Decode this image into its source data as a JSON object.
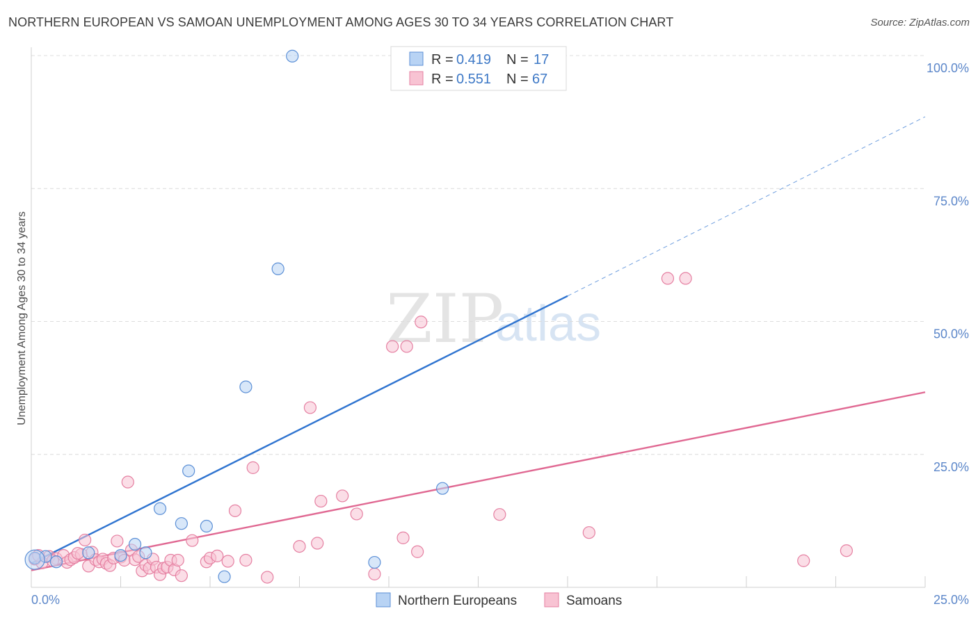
{
  "title": "NORTHERN EUROPEAN VS SAMOAN UNEMPLOYMENT AMONG AGES 30 TO 34 YEARS CORRELATION CHART",
  "source": "Source: ZipAtlas.com",
  "watermark": {
    "zip": "ZIP",
    "atlas": "atlas"
  },
  "colors": {
    "blue_fill": "#b8d3f4",
    "blue_stroke": "#5b8fd6",
    "blue_line": "#2f74d0",
    "pink_fill": "#f8c3d3",
    "pink_stroke": "#e57fa1",
    "pink_line": "#e06892",
    "grid": "#dcdcdc",
    "tick_text": "#5b86c9"
  },
  "legend": {
    "rows": [
      {
        "r_label": "R = ",
        "r_value": "0.419",
        "n_label": "N = ",
        "n_value": "17"
      },
      {
        "r_label": "R = ",
        "r_value": "0.551",
        "n_label": "N = ",
        "n_value": "67"
      }
    ]
  },
  "chart_data": {
    "type": "scatter",
    "title": "NORTHERN EUROPEAN VS SAMOAN UNEMPLOYMENT AMONG AGES 30 TO 34 YEARS CORRELATION CHART",
    "xlabel": "",
    "ylabel": "Unemployment Among Ages 30 to 34 years",
    "xlim": [
      0,
      25
    ],
    "ylim": [
      0,
      100
    ],
    "x_tick_labels": [
      "0.0%",
      "25.0%"
    ],
    "y_tick_labels": [
      "25.0%",
      "50.0%",
      "75.0%",
      "100.0%"
    ],
    "y_ticks": [
      25,
      50,
      75,
      100
    ],
    "grid": true,
    "legend_position": "top-center",
    "series": [
      {
        "name": "Northern Europeans",
        "points": [
          [
            0.1,
            5.5
          ],
          [
            0.4,
            5.8
          ],
          [
            0.7,
            4.8
          ],
          [
            1.6,
            6.5
          ],
          [
            2.5,
            6.0
          ],
          [
            2.9,
            8.1
          ],
          [
            3.2,
            6.5
          ],
          [
            3.6,
            14.8
          ],
          [
            4.2,
            12.0
          ],
          [
            4.4,
            21.9
          ],
          [
            4.9,
            11.5
          ],
          [
            5.4,
            2.0
          ],
          [
            6.0,
            37.7
          ],
          [
            6.9,
            59.9
          ],
          [
            7.3,
            99.9
          ],
          [
            9.6,
            4.7
          ],
          [
            11.5,
            18.6
          ]
        ],
        "trend": {
          "x0": 0,
          "y0": 4.5,
          "x1": 15,
          "y1": 54.8,
          "dash_to_x": 25,
          "dash_to_y": 88.5
        }
      },
      {
        "name": "Samoans",
        "points": [
          [
            0.1,
            5.3
          ],
          [
            0.3,
            4.6
          ],
          [
            0.5,
            5.8
          ],
          [
            0.7,
            5.4
          ],
          [
            0.9,
            6.0
          ],
          [
            1.0,
            4.7
          ],
          [
            1.1,
            5.2
          ],
          [
            1.2,
            5.6
          ],
          [
            1.4,
            6.2
          ],
          [
            1.5,
            8.9
          ],
          [
            1.6,
            4.0
          ],
          [
            1.7,
            6.6
          ],
          [
            1.8,
            5.2
          ],
          [
            1.9,
            4.8
          ],
          [
            2.0,
            5.3
          ],
          [
            2.1,
            4.5
          ],
          [
            2.2,
            4.1
          ],
          [
            2.3,
            5.5
          ],
          [
            2.4,
            8.7
          ],
          [
            2.5,
            5.7
          ],
          [
            2.6,
            5.1
          ],
          [
            2.7,
            19.8
          ],
          [
            2.8,
            7.0
          ],
          [
            2.9,
            5.2
          ],
          [
            3.0,
            5.8
          ],
          [
            3.1,
            3.1
          ],
          [
            3.2,
            4.2
          ],
          [
            3.3,
            3.6
          ],
          [
            3.4,
            5.3
          ],
          [
            3.5,
            3.8
          ],
          [
            3.6,
            2.4
          ],
          [
            3.7,
            3.6
          ],
          [
            3.8,
            3.8
          ],
          [
            3.9,
            5.1
          ],
          [
            4.0,
            3.3
          ],
          [
            4.1,
            5.1
          ],
          [
            4.2,
            2.2
          ],
          [
            4.5,
            8.8
          ],
          [
            4.9,
            4.8
          ],
          [
            5.0,
            5.5
          ],
          [
            5.2,
            5.9
          ],
          [
            5.5,
            4.9
          ],
          [
            5.7,
            14.4
          ],
          [
            6.0,
            5.1
          ],
          [
            6.2,
            22.5
          ],
          [
            6.6,
            1.9
          ],
          [
            7.5,
            7.7
          ],
          [
            7.8,
            33.8
          ],
          [
            8.0,
            8.3
          ],
          [
            8.1,
            16.2
          ],
          [
            8.7,
            17.2
          ],
          [
            9.1,
            13.8
          ],
          [
            9.6,
            2.5
          ],
          [
            10.1,
            45.3
          ],
          [
            10.4,
            9.3
          ],
          [
            10.5,
            45.3
          ],
          [
            10.8,
            6.7
          ],
          [
            10.9,
            49.9
          ],
          [
            13.1,
            13.7
          ],
          [
            15.6,
            10.3
          ],
          [
            17.8,
            58.1
          ],
          [
            18.3,
            58.1
          ],
          [
            21.6,
            5.0
          ],
          [
            22.8,
            6.9
          ],
          [
            0.2,
            6.0
          ],
          [
            0.6,
            5.0
          ],
          [
            1.3,
            6.4
          ]
        ],
        "trend": {
          "x0": 0,
          "y0": 3.2,
          "x1": 25,
          "y1": 36.7
        }
      }
    ]
  }
}
